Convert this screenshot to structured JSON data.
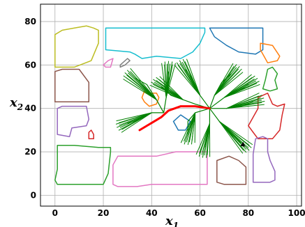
{
  "chart_data": {
    "type": "line",
    "title": "",
    "xlabel": "x",
    "xlabel_sub": "1",
    "ylabel": "x",
    "ylabel_sub": "2",
    "xlim": [
      -6,
      102
    ],
    "ylim": [
      -5,
      88
    ],
    "grid": true,
    "x_ticks": [
      0,
      20,
      40,
      60,
      80,
      100
    ],
    "y_ticks": [
      0,
      20,
      40,
      60,
      80
    ],
    "obstacles": [
      {
        "name": "olive-block",
        "color": "#bcbd22",
        "points": [
          [
            0,
            74
          ],
          [
            3,
            76
          ],
          [
            8,
            77
          ],
          [
            13,
            78
          ],
          [
            16,
            77
          ],
          [
            18,
            76
          ],
          [
            18,
            70
          ],
          [
            15,
            62
          ],
          [
            8,
            59
          ],
          [
            0,
            59
          ]
        ]
      },
      {
        "name": "brown-block-left",
        "color": "#8c564b",
        "points": [
          [
            0,
            57
          ],
          [
            3,
            58
          ],
          [
            10,
            58
          ],
          [
            14,
            52
          ],
          [
            14,
            43
          ],
          [
            0,
            43
          ]
        ]
      },
      {
        "name": "purple-block-left",
        "color": "#9467bd",
        "points": [
          [
            1,
            40
          ],
          [
            3,
            41
          ],
          [
            13,
            41
          ],
          [
            14,
            35
          ],
          [
            13,
            32
          ],
          [
            7,
            31
          ],
          [
            6,
            27
          ],
          [
            1,
            28
          ]
        ]
      },
      {
        "name": "red-small-square",
        "color": "#d62728",
        "points": [
          [
            14,
            29
          ],
          [
            15,
            30
          ],
          [
            16,
            28
          ],
          [
            16,
            26
          ],
          [
            14,
            26
          ]
        ]
      },
      {
        "name": "green-block-bottom",
        "color": "#2ca02c",
        "points": [
          [
            1,
            23
          ],
          [
            8,
            23
          ],
          [
            18,
            22
          ],
          [
            23,
            22
          ],
          [
            23,
            20
          ],
          [
            22,
            10
          ],
          [
            20,
            5
          ],
          [
            5,
            5
          ],
          [
            1,
            5
          ],
          [
            0,
            7
          ],
          [
            1,
            12
          ]
        ]
      },
      {
        "name": "cyan-block-top",
        "color": "#17becf",
        "points": [
          [
            21,
            77
          ],
          [
            62,
            77
          ],
          [
            62,
            75
          ],
          [
            60,
            70
          ],
          [
            57,
            66
          ],
          [
            52,
            63
          ],
          [
            42,
            64
          ],
          [
            36,
            63
          ],
          [
            33,
            65
          ],
          [
            31,
            66
          ],
          [
            21,
            67
          ]
        ]
      },
      {
        "name": "pink-small",
        "color": "#e377c2",
        "points": [
          [
            20,
            60
          ],
          [
            22,
            62
          ],
          [
            24,
            63
          ],
          [
            23,
            59
          ],
          [
            21,
            59
          ]
        ]
      },
      {
        "name": "gray-small",
        "color": "#7f7f7f",
        "points": [
          [
            27,
            60
          ],
          [
            30,
            63
          ],
          [
            31,
            62
          ],
          [
            29,
            60
          ],
          [
            27,
            59
          ]
        ]
      },
      {
        "name": "blue-block-top-right",
        "color": "#1f77b4",
        "points": [
          [
            64,
            77
          ],
          [
            86,
            77
          ],
          [
            86,
            67
          ],
          [
            83,
            65
          ],
          [
            76,
            66
          ],
          [
            71,
            69
          ],
          [
            66,
            73
          ]
        ]
      },
      {
        "name": "orange-small-top-right",
        "color": "#ff7f0e",
        "points": [
          [
            85,
            70
          ],
          [
            90,
            69
          ],
          [
            93,
            64
          ],
          [
            92,
            62
          ],
          [
            88,
            61
          ],
          [
            87,
            63
          ],
          [
            85,
            67
          ]
        ]
      },
      {
        "name": "green-small-right",
        "color": "#2ca02c",
        "points": [
          [
            88,
            58
          ],
          [
            90,
            59
          ],
          [
            92,
            56
          ],
          [
            91,
            53
          ],
          [
            92,
            49
          ],
          [
            89,
            48
          ],
          [
            86,
            49
          ],
          [
            87,
            53
          ]
        ]
      },
      {
        "name": "red-block-right",
        "color": "#d62728",
        "points": [
          [
            84,
            45
          ],
          [
            88,
            47
          ],
          [
            90,
            42
          ],
          [
            92,
            41
          ],
          [
            95,
            42
          ],
          [
            94,
            37
          ],
          [
            93,
            30
          ],
          [
            90,
            26
          ],
          [
            84,
            26
          ],
          [
            82,
            29
          ],
          [
            80,
            32
          ],
          [
            82,
            36
          ],
          [
            84,
            40
          ]
        ]
      },
      {
        "name": "orange-small-center",
        "color": "#ff7f0e",
        "points": [
          [
            37,
            48
          ],
          [
            38,
            47
          ],
          [
            42,
            47
          ],
          [
            43,
            45
          ],
          [
            42,
            42
          ],
          [
            39,
            41
          ],
          [
            37,
            43
          ],
          [
            36,
            45
          ]
        ]
      },
      {
        "name": "blue-small-center",
        "color": "#1f77b4",
        "points": [
          [
            49,
            34
          ],
          [
            52,
            37
          ],
          [
            56,
            34
          ],
          [
            54,
            30
          ],
          [
            51,
            30
          ]
        ]
      },
      {
        "name": "pink-block-bottom",
        "color": "#e377c2",
        "points": [
          [
            26,
            18
          ],
          [
            42,
            18
          ],
          [
            50,
            20
          ],
          [
            63,
            20
          ],
          [
            63,
            5
          ],
          [
            40,
            5
          ],
          [
            34,
            4
          ],
          [
            26,
            4
          ],
          [
            24,
            5
          ],
          [
            24,
            14
          ]
        ]
      },
      {
        "name": "brown-block-bottom-right",
        "color": "#8c564b",
        "points": [
          [
            67,
            16
          ],
          [
            72,
            18
          ],
          [
            76,
            16
          ],
          [
            79,
            13
          ],
          [
            79,
            5
          ],
          [
            70,
            5
          ],
          [
            67,
            6
          ]
        ]
      },
      {
        "name": "purple-block-right",
        "color": "#9467bd",
        "points": [
          [
            82,
            19
          ],
          [
            83,
            26
          ],
          [
            86,
            27
          ],
          [
            88,
            26
          ],
          [
            88,
            20
          ],
          [
            89,
            16
          ],
          [
            91,
            11
          ],
          [
            91,
            7
          ],
          [
            89,
            6
          ],
          [
            82,
            6
          ]
        ]
      }
    ],
    "tree_root": [
      64,
      40
    ],
    "tree_color": "#008000",
    "tree_branches": [
      [
        [
          64,
          40
        ],
        [
          58,
          42
        ],
        [
          53,
          44
        ],
        [
          48,
          46
        ],
        [
          44,
          50
        ]
      ],
      [
        [
          64,
          40
        ],
        [
          60,
          46
        ],
        [
          57,
          53
        ],
        [
          54,
          58
        ]
      ],
      [
        [
          64,
          40
        ],
        [
          66,
          46
        ],
        [
          69,
          52
        ],
        [
          73,
          56
        ]
      ],
      [
        [
          64,
          40
        ],
        [
          70,
          45
        ],
        [
          76,
          48
        ],
        [
          80,
          51
        ]
      ],
      [
        [
          64,
          40
        ],
        [
          71,
          40
        ],
        [
          77,
          41
        ],
        [
          82,
          43
        ]
      ],
      [
        [
          64,
          40
        ],
        [
          68,
          34
        ],
        [
          73,
          28
        ],
        [
          77,
          24
        ]
      ],
      [
        [
          64,
          40
        ],
        [
          64,
          33
        ],
        [
          63,
          27
        ],
        [
          62,
          22
        ]
      ],
      [
        [
          64,
          40
        ],
        [
          58,
          38
        ],
        [
          55,
          34
        ],
        [
          55,
          28
        ]
      ],
      [
        [
          45,
          38
        ],
        [
          40,
          38
        ],
        [
          35,
          35
        ],
        [
          30,
          33
        ]
      ],
      [
        [
          45,
          38
        ],
        [
          42,
          44
        ],
        [
          38,
          51
        ],
        [
          33,
          54
        ]
      ],
      [
        [
          45,
          38
        ],
        [
          46,
          45
        ],
        [
          47,
          52
        ],
        [
          47,
          57
        ]
      ]
    ],
    "path_color": "#ff0000",
    "path": [
      [
        35,
        30
      ],
      [
        38,
        32
      ],
      [
        41,
        34
      ],
      [
        44,
        36
      ],
      [
        47,
        39
      ],
      [
        52,
        41
      ],
      [
        58,
        41
      ],
      [
        64,
        40
      ]
    ]
  }
}
